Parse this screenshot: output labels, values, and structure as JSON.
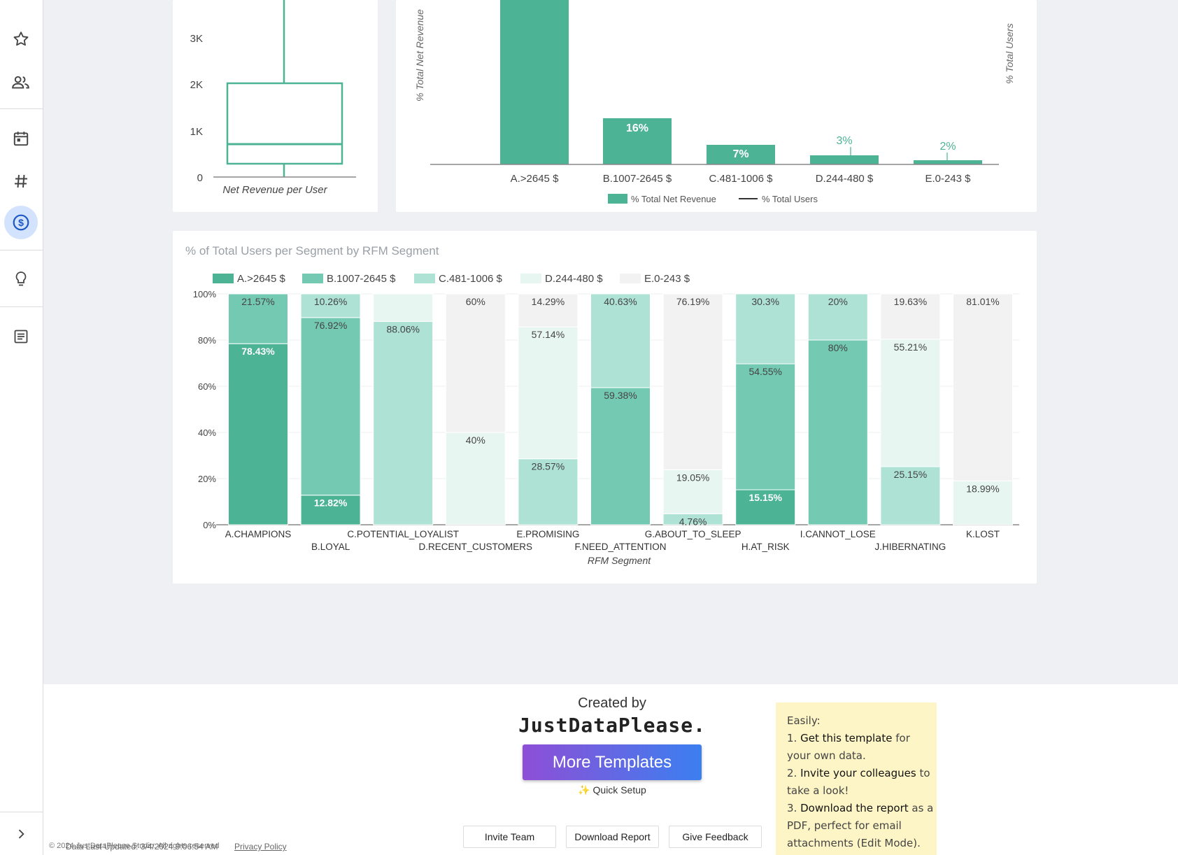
{
  "sidebar": {
    "icons": [
      "star-icon",
      "people-icon",
      "calendar-icon",
      "hash-icon",
      "dollar-icon",
      "lightbulb-icon",
      "document-icon",
      "chevron-right-icon"
    ],
    "active": "dollar-icon"
  },
  "boxplot": {
    "ticks": [
      "3K",
      "2K",
      "1K",
      "0"
    ],
    "xlabel": "Net Revenue per User"
  },
  "revenue_chart": {
    "categories": [
      "A.>2645 $",
      "B.1007-2645 $",
      "C.481-1006 $",
      "D.244-480 $",
      "E.0-243 $"
    ],
    "labels": [
      "16%",
      "7%",
      "3%",
      "2%"
    ],
    "ylabel_left": "% Total Net Revenue",
    "ylabel_right": "% Total Users",
    "legend": [
      "% Total Net Revenue",
      "% Total Users"
    ]
  },
  "stacked_chart": {
    "title": "% of Total Users per Segment by RFM Segment",
    "legend": [
      "A.>2645 $",
      "B.1007-2645 $",
      "C.481-1006 $",
      "D.244-480 $",
      "E.0-243 $"
    ],
    "yticks": [
      "100%",
      "80%",
      "60%",
      "40%",
      "20%",
      "0%"
    ],
    "xlabel": "RFM Segment"
  },
  "chart_data": [
    {
      "type": "bar",
      "stacked": true,
      "title": "% of Total Users per Segment by RFM Segment",
      "xlabel": "RFM Segment",
      "ylabel": "",
      "ylim": [
        0,
        100
      ],
      "categories": [
        "A.CHAMPIONS",
        "B.LOYAL",
        "C.POTENTIAL_LOYALIST",
        "D.RECENT_CUSTOMERS",
        "E.PROMISING",
        "F.NEED_ATTENTION",
        "G.ABOUT_TO_SLEEP",
        "H.AT_RISK",
        "I.CANNOT_LOSE",
        "J.HIBERNATING",
        "K.LOST"
      ],
      "series": [
        {
          "name": "A.>2645 $",
          "values": [
            78.43,
            12.82,
            0,
            0,
            0,
            0,
            0,
            15.15,
            0,
            0,
            0
          ]
        },
        {
          "name": "B.1007-2645 $",
          "values": [
            21.57,
            76.92,
            0,
            0,
            0,
            59.38,
            0,
            54.55,
            80,
            0,
            0
          ]
        },
        {
          "name": "C.481-1006 $",
          "values": [
            0,
            10.26,
            88.06,
            0,
            28.57,
            40.63,
            4.76,
            30.3,
            20,
            25.15,
            0
          ]
        },
        {
          "name": "D.244-480 $",
          "values": [
            0,
            0,
            11.94,
            40,
            57.14,
            0,
            19.05,
            0,
            0,
            55.21,
            18.99
          ]
        },
        {
          "name": "E.0-243 $",
          "values": [
            0,
            0,
            0,
            60,
            14.29,
            0,
            76.19,
            0,
            0,
            19.63,
            81.01
          ]
        }
      ],
      "labels": [
        [
          "78.43%",
          "21.57%",
          "",
          "",
          ""
        ],
        [
          "12.82%",
          "76.92%",
          "10.26%",
          "",
          ""
        ],
        [
          "",
          "",
          "88.06%",
          "",
          ""
        ],
        [
          "",
          "",
          "",
          "40%",
          "60%"
        ],
        [
          "",
          "",
          "28.57%",
          "57.14%",
          "14.29%"
        ],
        [
          "",
          "59.38%",
          "40.63%",
          "",
          ""
        ],
        [
          "",
          "",
          "4.76%",
          "19.05%",
          "76.19%"
        ],
        [
          "15.15%",
          "54.55%",
          "30.3%",
          "",
          ""
        ],
        [
          "",
          "80%",
          "20%",
          "",
          ""
        ],
        [
          "",
          "",
          "25.15%",
          "55.21%",
          "19.63%"
        ],
        [
          "",
          "",
          "",
          "18.99%",
          "81.01%"
        ]
      ],
      "colors": [
        "#4db395",
        "#74c9b2",
        "#ade2d4",
        "#e8f6f1",
        "#f2f2f2"
      ]
    },
    {
      "type": "bar",
      "title": "",
      "categories": [
        "A.>2645 $",
        "B.1007-2645 $",
        "C.481-1006 $",
        "D.244-480 $",
        "E.0-243 $"
      ],
      "series": [
        {
          "name": "% Total Net Revenue",
          "values": [
            null,
            16,
            7,
            3,
            2
          ]
        }
      ],
      "ylabel": "% Total Net Revenue"
    },
    {
      "type": "box",
      "xlabel": "Net Revenue per User",
      "yticks": [
        "0",
        "1K",
        "2K",
        "3K"
      ],
      "box": {
        "q1": 30,
        "median": 430,
        "q3": 1750
      }
    }
  ],
  "footer": {
    "created_by": "Created by",
    "brand": "JustDataPlease.",
    "more_templates": "More Templates",
    "quick_setup": "✨ Quick Setup",
    "invite": "Invite Team",
    "download": "Download Report",
    "feedback": "Give Feedback",
    "last_updated": "Data Last Updated: 3/4/2024 9:06:54 AM",
    "copyright": "© 2024 JustDataPlease Studio. All rights reserved",
    "privacy": "Privacy Policy"
  },
  "note": {
    "easily": "Easily:",
    "step1_num": "1.",
    "step1_bold": "Get this template",
    "step1_rest": "for your own data.",
    "step2_num": "2.",
    "step2_bold": "Invite your colleagues",
    "step2_rest": "to take a look!",
    "step3_num": "3.",
    "step3_bold": "Download the report",
    "step3_rest": "as a PDF, perfect for email attachments (Edit Mode)."
  }
}
